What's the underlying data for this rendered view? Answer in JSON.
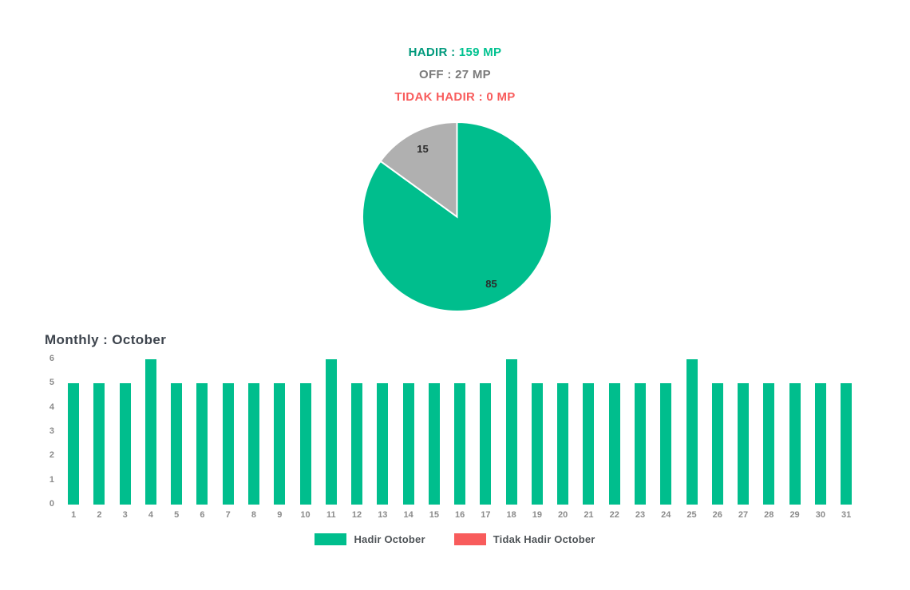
{
  "summary": {
    "lines": [
      {
        "id": "hadir",
        "label": "HADIR :",
        "value": "159 MP"
      },
      {
        "id": "off",
        "label": "OFF :",
        "value": "27 MP"
      },
      {
        "id": "tidak",
        "label": "TIDAK HADIR :",
        "value": "0 MP"
      }
    ]
  },
  "colors": {
    "green": "#00be8d",
    "green_dark_label": "#00997c",
    "red": "#f85c5c",
    "gray_slice": "#b0b0b0",
    "gray_text": "#7b7b7b",
    "axis_gray": "#8b8b8b",
    "title_slate": "#3d444d"
  },
  "chart_data": [
    {
      "type": "pie",
      "values": [
        85,
        15
      ],
      "data_labels": [
        "85",
        "15"
      ],
      "slice_colors": [
        "#00be8d",
        "#b0b0b0"
      ],
      "start_angle_deg": 0,
      "direction": "clockwise",
      "label_radius_factor": 0.8
    },
    {
      "type": "bar",
      "title": "Monthly : October",
      "categories": [
        "1",
        "2",
        "3",
        "4",
        "5",
        "6",
        "7",
        "8",
        "9",
        "10",
        "11",
        "12",
        "13",
        "14",
        "15",
        "16",
        "17",
        "18",
        "19",
        "20",
        "21",
        "22",
        "23",
        "24",
        "25",
        "26",
        "27",
        "28",
        "29",
        "30",
        "31"
      ],
      "series": [
        {
          "name": "Hadir October",
          "color": "#00be8d",
          "values": [
            5,
            5,
            5,
            6,
            5,
            5,
            5,
            5,
            5,
            5,
            6,
            5,
            5,
            5,
            5,
            5,
            5,
            6,
            5,
            5,
            5,
            5,
            5,
            5,
            6,
            5,
            5,
            5,
            5,
            5,
            5
          ]
        },
        {
          "name": "Tidak Hadir October",
          "color": "#f85c5c",
          "values": [
            0,
            0,
            0,
            0,
            0,
            0,
            0,
            0,
            0,
            0,
            0,
            0,
            0,
            0,
            0,
            0,
            0,
            0,
            0,
            0,
            0,
            0,
            0,
            0,
            0,
            0,
            0,
            0,
            0,
            0,
            0
          ]
        }
      ],
      "xlabel": "",
      "ylabel": "",
      "ylim": [
        0,
        6
      ],
      "yticks": [
        0,
        1,
        2,
        3,
        4,
        5,
        6
      ],
      "grid": false,
      "legend_position": "bottom"
    }
  ]
}
